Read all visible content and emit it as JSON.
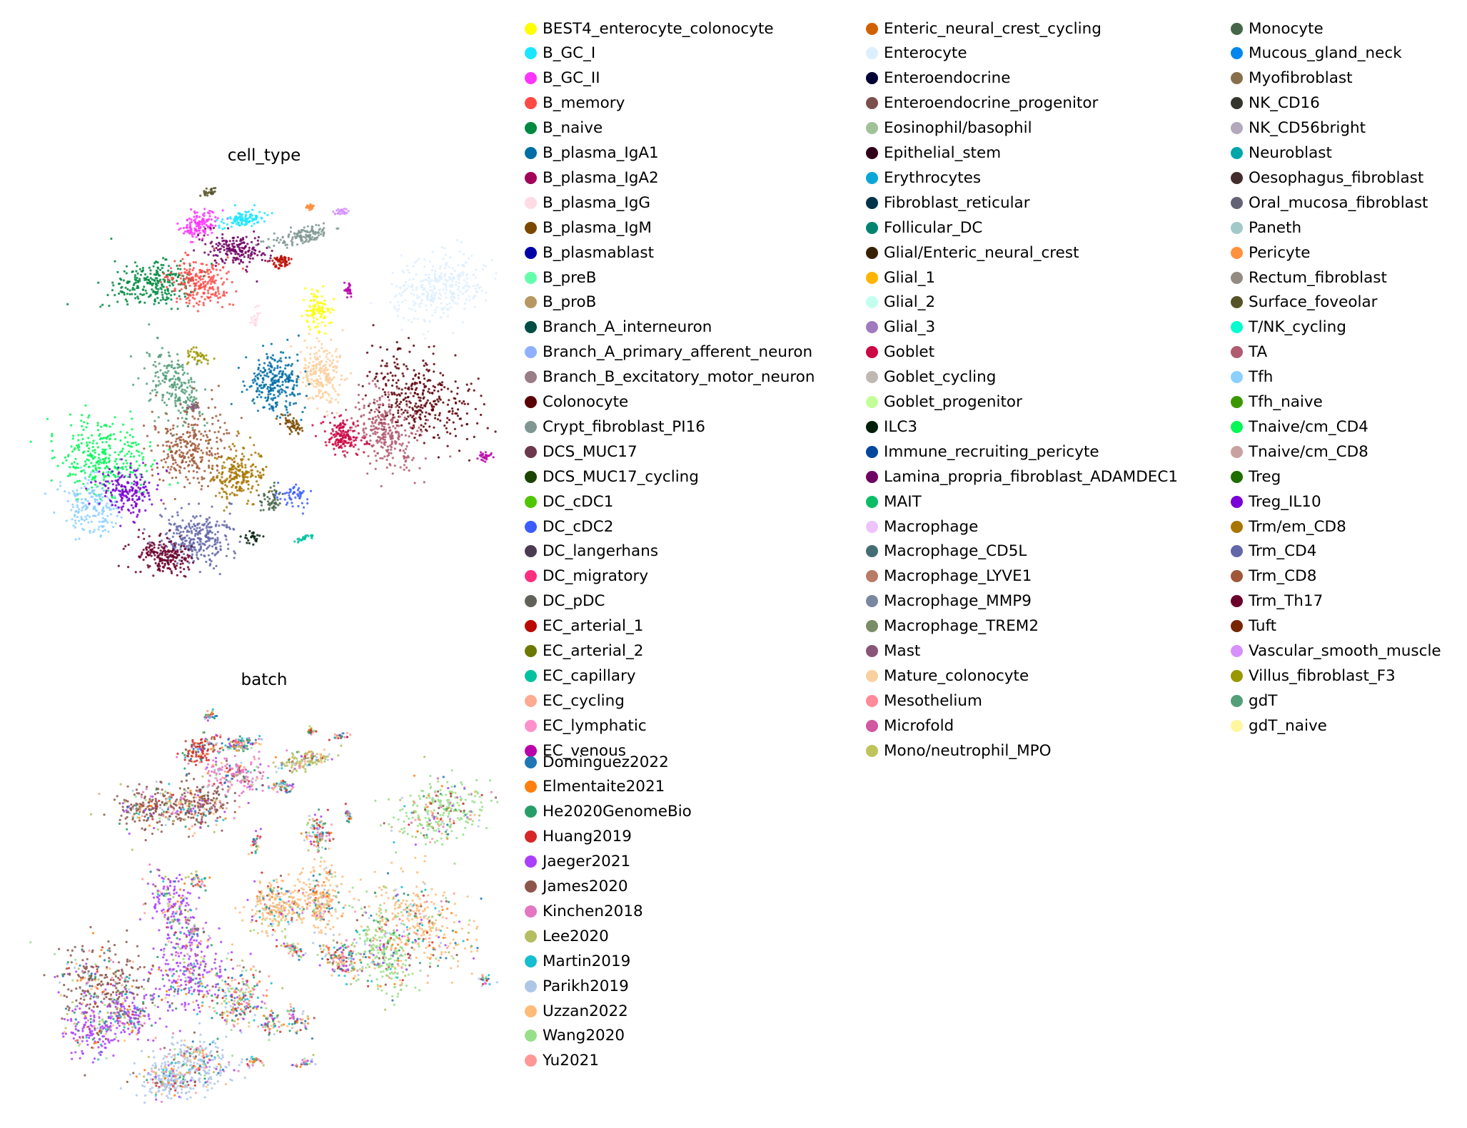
{
  "chart_data": [
    {
      "type": "scatter",
      "title": "cell_type",
      "xlabel": "",
      "ylabel": "",
      "grid": false,
      "axes_visible": false,
      "legend_placement": "right",
      "legend_columns": 3,
      "categories": [
        {
          "name": "BEST4_enterocyte_colonocyte",
          "color": "#ffff00"
        },
        {
          "name": "B_GC_I",
          "color": "#1ce6ff"
        },
        {
          "name": "B_GC_II",
          "color": "#ff34ff"
        },
        {
          "name": "B_memory",
          "color": "#ff4a46"
        },
        {
          "name": "B_naive",
          "color": "#008941"
        },
        {
          "name": "B_plasma_IgA1",
          "color": "#006fa6"
        },
        {
          "name": "B_plasma_IgA2",
          "color": "#a30059"
        },
        {
          "name": "B_plasma_IgG",
          "color": "#ffdbe5"
        },
        {
          "name": "B_plasma_IgM",
          "color": "#7a4900"
        },
        {
          "name": "B_plasmablast",
          "color": "#0000a6"
        },
        {
          "name": "B_preB",
          "color": "#63ffac"
        },
        {
          "name": "B_proB",
          "color": "#b79762"
        },
        {
          "name": "Branch_A_interneuron",
          "color": "#004d43"
        },
        {
          "name": "Branch_A_primary_afferent_neuron",
          "color": "#8fb0ff"
        },
        {
          "name": "Branch_B_excitatory_motor_neuron",
          "color": "#997d87"
        },
        {
          "name": "Colonocyte",
          "color": "#5a0007"
        },
        {
          "name": "Crypt_fibroblast_PI16",
          "color": "#809693"
        },
        {
          "name": "DCS_MUC17",
          "color": "#6a3a4c"
        },
        {
          "name": "DCS_MUC17_cycling",
          "color": "#1b4400"
        },
        {
          "name": "DC_cDC1",
          "color": "#4fc601"
        },
        {
          "name": "DC_cDC2",
          "color": "#3b5dff"
        },
        {
          "name": "DC_langerhans",
          "color": "#4a3b53"
        },
        {
          "name": "DC_migratory",
          "color": "#ff2f80"
        },
        {
          "name": "DC_pDC",
          "color": "#61615a"
        },
        {
          "name": "EC_arterial_1",
          "color": "#ba0900"
        },
        {
          "name": "EC_arterial_2",
          "color": "#6b7900"
        },
        {
          "name": "EC_capillary",
          "color": "#00c2a0"
        },
        {
          "name": "EC_cycling",
          "color": "#ffaa92"
        },
        {
          "name": "EC_lymphatic",
          "color": "#ff90c9"
        },
        {
          "name": "EC_venous",
          "color": "#b903aa"
        },
        {
          "name": "Enteric_neural_crest_cycling",
          "color": "#d16100"
        },
        {
          "name": "Enterocyte",
          "color": "#ddefff"
        },
        {
          "name": "Enteroendocrine",
          "color": "#000035"
        },
        {
          "name": "Enteroendocrine_progenitor",
          "color": "#7b4f4b"
        },
        {
          "name": "Eosinophil/basophil",
          "color": "#a1c299"
        },
        {
          "name": "Epithelial_stem",
          "color": "#300018"
        },
        {
          "name": "Erythrocytes",
          "color": "#0aa6d8"
        },
        {
          "name": "Fibroblast_reticular",
          "color": "#013349"
        },
        {
          "name": "Follicular_DC",
          "color": "#00846f"
        },
        {
          "name": "Glial/Enteric_neural_crest",
          "color": "#372101"
        },
        {
          "name": "Glial_1",
          "color": "#ffb500"
        },
        {
          "name": "Glial_2",
          "color": "#c2ffed"
        },
        {
          "name": "Glial_3",
          "color": "#a079bf"
        },
        {
          "name": "Goblet",
          "color": "#cc0744"
        },
        {
          "name": "Goblet_cycling",
          "color": "#c0b9b2"
        },
        {
          "name": "Goblet_progenitor",
          "color": "#c2ff99"
        },
        {
          "name": "ILC3",
          "color": "#001e09"
        },
        {
          "name": "Immune_recruiting_pericyte",
          "color": "#00489c"
        },
        {
          "name": "Lamina_propria_fibroblast_ADAMDEC1",
          "color": "#6f0062"
        },
        {
          "name": "MAIT",
          "color": "#0cbd66"
        },
        {
          "name": "Macrophage",
          "color": "#eec3ff"
        },
        {
          "name": "Macrophage_CD5L",
          "color": "#456d75"
        },
        {
          "name": "Macrophage_LYVE1",
          "color": "#b77b68"
        },
        {
          "name": "Macrophage_MMP9",
          "color": "#7a87a1"
        },
        {
          "name": "Macrophage_TREM2",
          "color": "#788d66"
        },
        {
          "name": "Mast",
          "color": "#885578"
        },
        {
          "name": "Mature_colonocyte",
          "color": "#fad09f"
        },
        {
          "name": "Mesothelium",
          "color": "#ff8a9a"
        },
        {
          "name": "Microfold",
          "color": "#d157a0"
        },
        {
          "name": "Mono/neutrophil_MPO",
          "color": "#bec459"
        },
        {
          "name": "Monocyte",
          "color": "#456648"
        },
        {
          "name": "Mucous_gland_neck",
          "color": "#0086ed"
        },
        {
          "name": "Myofibroblast",
          "color": "#886f4c"
        },
        {
          "name": "NK_CD16",
          "color": "#34362d"
        },
        {
          "name": "NK_CD56bright",
          "color": "#b4a8bd"
        },
        {
          "name": "Neuroblast",
          "color": "#00a6aa"
        },
        {
          "name": "Oesophagus_fibroblast",
          "color": "#452c2c"
        },
        {
          "name": "Oral_mucosa_fibroblast",
          "color": "#636375"
        },
        {
          "name": "Paneth",
          "color": "#a3c8c9"
        },
        {
          "name": "Pericyte",
          "color": "#ff913f"
        },
        {
          "name": "Rectum_fibroblast",
          "color": "#938a81"
        },
        {
          "name": "Surface_foveolar",
          "color": "#575329"
        },
        {
          "name": "T/NK_cycling",
          "color": "#00fecf"
        },
        {
          "name": "TA",
          "color": "#b05b6f"
        },
        {
          "name": "Tfh",
          "color": "#8cd0ff"
        },
        {
          "name": "Tfh_naive",
          "color": "#3b9700"
        },
        {
          "name": "Tnaive/cm_CD4",
          "color": "#04f757"
        },
        {
          "name": "Tnaive/cm_CD8",
          "color": "#c8a1a1"
        },
        {
          "name": "Treg",
          "color": "#1e6e00"
        },
        {
          "name": "Treg_IL10",
          "color": "#7900d7"
        },
        {
          "name": "Trm/em_CD8",
          "color": "#a77500"
        },
        {
          "name": "Trm_CD4",
          "color": "#6367a9"
        },
        {
          "name": "Trm_CD8",
          "color": "#a05837"
        },
        {
          "name": "Trm_Th17",
          "color": "#6b002c"
        },
        {
          "name": "Tuft",
          "color": "#772600"
        },
        {
          "name": "Vascular_smooth_muscle",
          "color": "#d790ff"
        },
        {
          "name": "Villus_fibroblast_F3",
          "color": "#9b9700"
        },
        {
          "name": "gdT",
          "color": "#549e79"
        },
        {
          "name": "gdT_naive",
          "color": "#fff69f"
        }
      ]
    },
    {
      "type": "scatter",
      "title": "batch",
      "xlabel": "",
      "ylabel": "",
      "grid": false,
      "axes_visible": false,
      "legend_placement": "right",
      "legend_columns": 1,
      "categories": [
        {
          "name": "Dominguez2022",
          "color": "#1f77b4"
        },
        {
          "name": "Elmentaite2021",
          "color": "#ff7f0e"
        },
        {
          "name": "He2020GenomeBio",
          "color": "#279e68"
        },
        {
          "name": "Huang2019",
          "color": "#d62728"
        },
        {
          "name": "Jaeger2021",
          "color": "#aa40fc"
        },
        {
          "name": "James2020",
          "color": "#8c564b"
        },
        {
          "name": "Kinchen2018",
          "color": "#e377c2"
        },
        {
          "name": "Lee2020",
          "color": "#b5bd61"
        },
        {
          "name": "Martin2019",
          "color": "#17becf"
        },
        {
          "name": "Parikh2019",
          "color": "#aec7e8"
        },
        {
          "name": "Uzzan2022",
          "color": "#ffbb78"
        },
        {
          "name": "Wang2020",
          "color": "#98df8a"
        },
        {
          "name": "Yu2021",
          "color": "#ff9896"
        }
      ]
    }
  ]
}
